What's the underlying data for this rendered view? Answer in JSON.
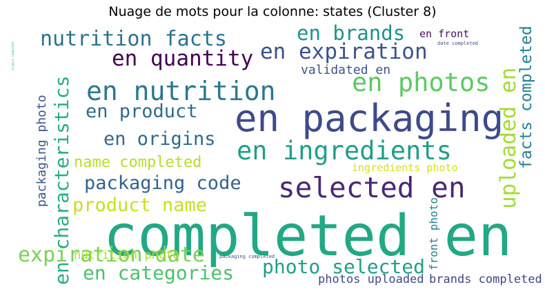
{
  "title": "Nuage de mots pour la colonne: states (Cluster 8)",
  "words": [
    {
      "text": "completed en",
      "color": "#22a884"
    },
    {
      "text": "en packaging",
      "color": "#3e4a89"
    },
    {
      "text": "selected en",
      "color": "#482878"
    },
    {
      "text": "en ingredients",
      "color": "#1f9e89"
    },
    {
      "text": "en nutrition",
      "color": "#2a788e"
    },
    {
      "text": "en photos",
      "color": "#5ec962"
    },
    {
      "text": "en quantity",
      "color": "#440154"
    },
    {
      "text": "en expiration",
      "color": "#3b528b"
    },
    {
      "text": "nutrition facts",
      "color": "#2c728e"
    },
    {
      "text": "en brands",
      "color": "#21918c"
    },
    {
      "text": "en product",
      "color": "#2f6c8e"
    },
    {
      "text": "en origins",
      "color": "#31688e"
    },
    {
      "text": "packaging code",
      "color": "#33638d"
    },
    {
      "text": "product name",
      "color": "#c8e020"
    },
    {
      "text": "name completed",
      "color": "#b5de2b"
    },
    {
      "text": "photo selected",
      "color": "#1fa088"
    },
    {
      "text": "en categories",
      "color": "#4ac16d"
    },
    {
      "text": "expiration date",
      "color": "#7ad151"
    },
    {
      "text": "en characteristics",
      "color": "#28ae80"
    },
    {
      "text": "uploaded en",
      "color": "#a5db36"
    },
    {
      "text": "facts completed",
      "color": "#26828e"
    },
    {
      "text": "packaging photo",
      "color": "#39568c"
    },
    {
      "text": "validated en",
      "color": "#3b528b"
    },
    {
      "text": "ingredients photo",
      "color": "#d2e21b"
    },
    {
      "text": "nutrition photo",
      "color": "#addc30"
    },
    {
      "text": "front photo",
      "color": "#25858e"
    },
    {
      "text": "photos uploaded",
      "color": "#3e4989"
    },
    {
      "text": "brands completed",
      "color": "#414487"
    },
    {
      "text": "en front",
      "color": "#471063"
    },
    {
      "text": "date completed",
      "color": "#3f4788"
    },
    {
      "text": "packaging completed",
      "color": "#3e4c8a"
    },
    {
      "text": "origins completed",
      "color": "#2ab07f"
    }
  ]
}
